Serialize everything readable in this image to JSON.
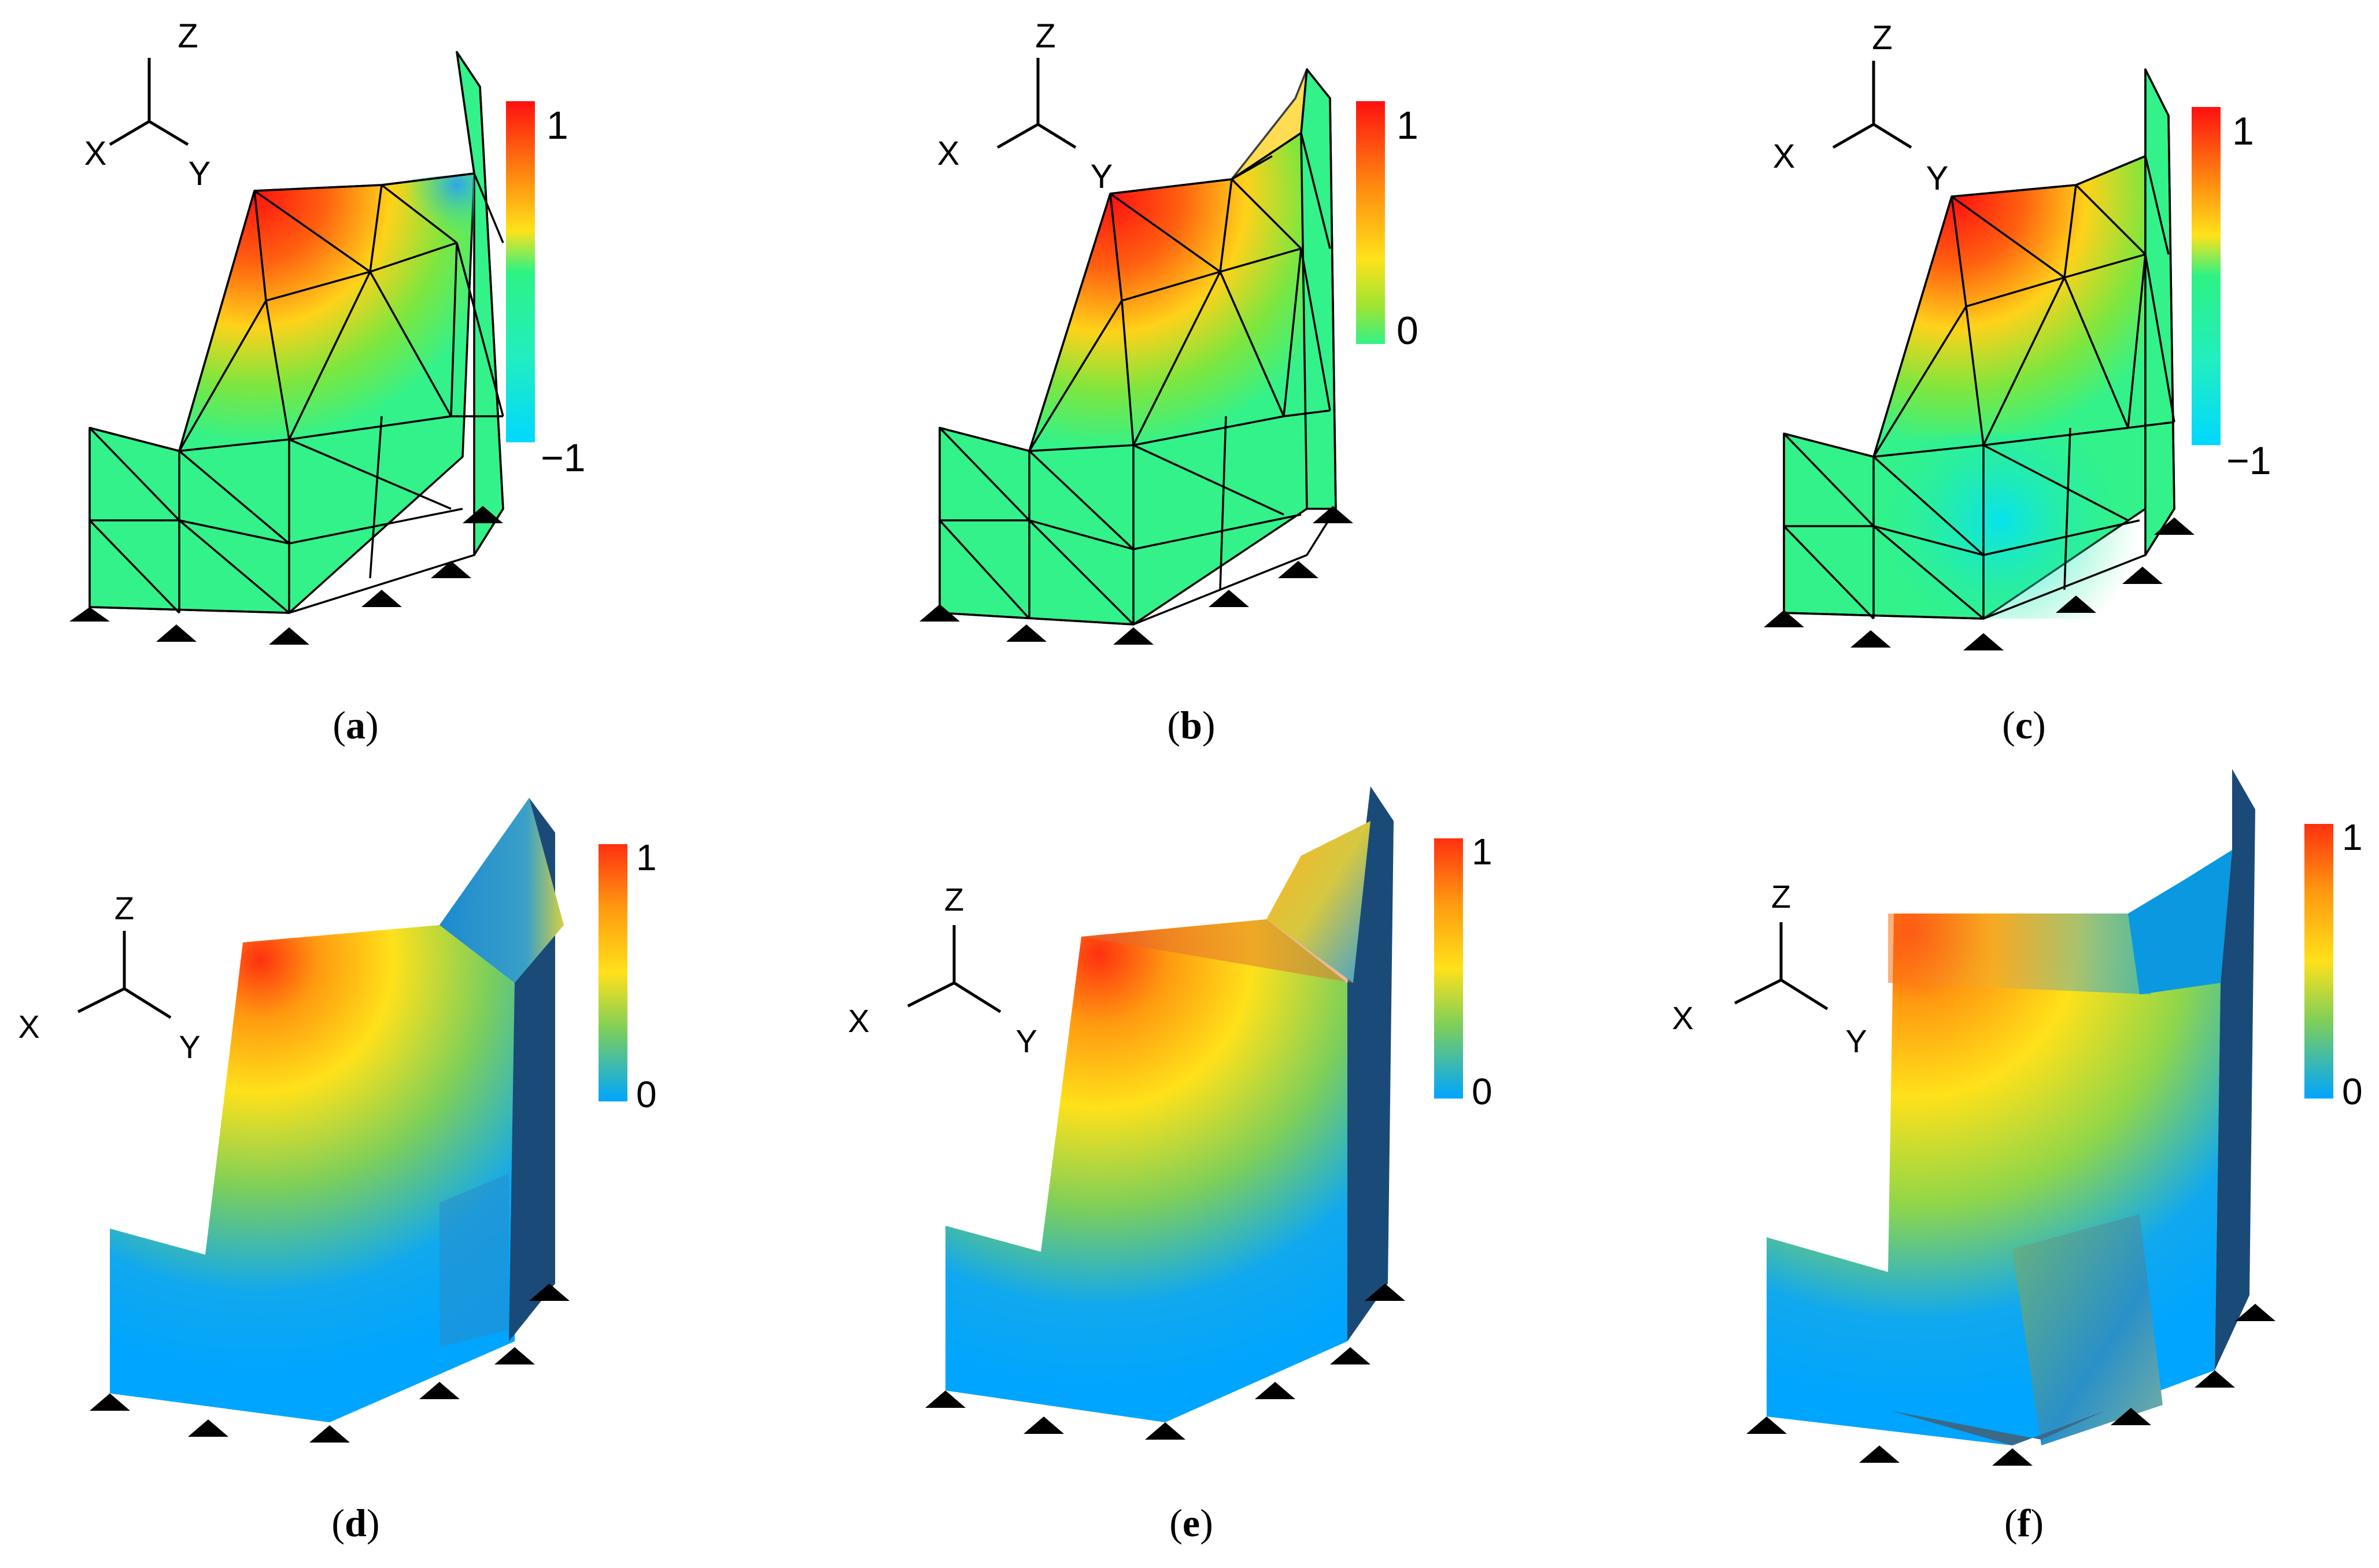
{
  "palette": {
    "jet": [
      "#00e5ff",
      "#33f28a",
      "#9be534",
      "#ffe21a",
      "#ff9a10",
      "#ff1a10"
    ],
    "cool": [
      "#00a5ff",
      "#38c0b0",
      "#a6d93a",
      "#ffe11a",
      "#ff8c10",
      "#ff3010"
    ],
    "mesh_line": "#000000",
    "support": "#000000",
    "shadow_face": "#1a4a78"
  },
  "panels": [
    {
      "id": "a",
      "caption_letter": "a",
      "scale": "jet",
      "colorbar_max": "1",
      "colorbar_min": "−1",
      "axis_labels": {
        "z": "Z",
        "x": "X",
        "y": "Y"
      }
    },
    {
      "id": "b",
      "caption_letter": "b",
      "scale": "jet_pos",
      "colorbar_max": "1",
      "colorbar_min": "0",
      "axis_labels": {
        "z": "Z",
        "x": "X",
        "y": "Y"
      }
    },
    {
      "id": "c",
      "caption_letter": "c",
      "scale": "jet",
      "colorbar_max": "1",
      "colorbar_min": "−1",
      "axis_labels": {
        "z": "Z",
        "x": "X",
        "y": "Y"
      }
    },
    {
      "id": "d",
      "caption_letter": "d",
      "scale": "cool",
      "colorbar_max": "1",
      "colorbar_min": "0",
      "axis_labels": {
        "z": "Z",
        "x": "X",
        "y": "Y"
      }
    },
    {
      "id": "e",
      "caption_letter": "e",
      "scale": "cool",
      "colorbar_max": "1",
      "colorbar_min": "0",
      "axis_labels": {
        "z": "Z",
        "x": "X",
        "y": "Y"
      }
    },
    {
      "id": "f",
      "caption_letter": "f",
      "scale": "cool",
      "colorbar_max": "1",
      "colorbar_min": "0",
      "axis_labels": {
        "z": "Z",
        "x": "X",
        "y": "Y"
      }
    }
  ]
}
